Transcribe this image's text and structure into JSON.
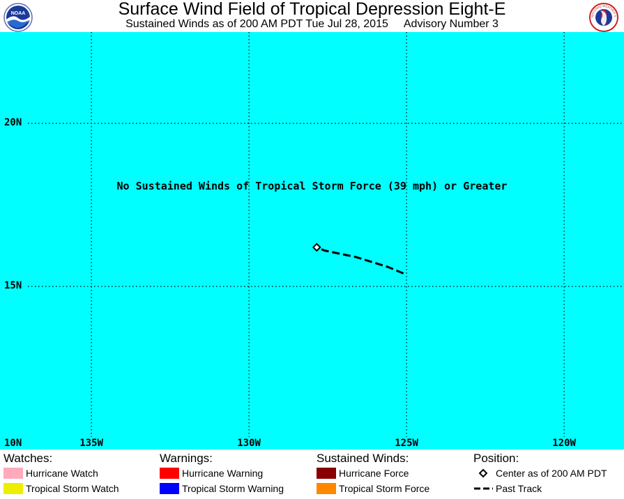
{
  "header": {
    "title": "Surface Wind Field of Tropical Depression Eight-E",
    "subtitle_time": "Sustained Winds as of 200 AM PDT Tue Jul 28, 2015",
    "subtitle_advisory": "Advisory Number 3",
    "left_logo_text": "NOAA",
    "right_logo_text": "NATIONAL WEATHER SERVICE"
  },
  "map": {
    "ocean_color": "#00ffff",
    "lat_range": [
      10,
      22.8
    ],
    "lon_range": [
      -137.9,
      -118.1
    ],
    "lat_labels": [
      {
        "lat": 20,
        "text": "20N"
      },
      {
        "lat": 15,
        "text": "15N"
      },
      {
        "lat": 10,
        "text": "10N"
      }
    ],
    "lon_labels": [
      {
        "lon": -135,
        "text": "135W"
      },
      {
        "lon": -130,
        "text": "130W"
      },
      {
        "lon": -125,
        "text": "125W"
      },
      {
        "lon": -120,
        "text": "120W"
      }
    ],
    "no_winds_message": "No Sustained Winds of Tropical Storm Force (39 mph) or Greater",
    "center": {
      "lat": 16.2,
      "lon": -127.85
    },
    "past_track": [
      {
        "lat": 15.4,
        "lon": -125.1
      },
      {
        "lat": 15.6,
        "lon": -125.6
      },
      {
        "lat": 15.75,
        "lon": -126.1
      },
      {
        "lat": 15.9,
        "lon": -126.6
      },
      {
        "lat": 16.0,
        "lon": -127.1
      },
      {
        "lat": 16.1,
        "lon": -127.6
      },
      {
        "lat": 16.2,
        "lon": -127.85
      }
    ]
  },
  "legend": {
    "watches": {
      "heading": "Watches:",
      "items": [
        {
          "label": "Hurricane Watch",
          "color": "#ffaabb"
        },
        {
          "label": "Tropical Storm Watch",
          "color": "#eeee00"
        }
      ]
    },
    "warnings": {
      "heading": "Warnings:",
      "items": [
        {
          "label": "Hurricane Warning",
          "color": "#ff0000"
        },
        {
          "label": "Tropical Storm Warning",
          "color": "#0000ff"
        }
      ]
    },
    "sustained_winds": {
      "heading": "Sustained Winds:",
      "items": [
        {
          "label": "Hurricane Force",
          "color": "#880000"
        },
        {
          "label": "Tropical Storm Force",
          "color": "#ff8800"
        }
      ]
    },
    "position": {
      "heading": "Position:",
      "items": [
        {
          "label": "Center as of 200 AM PDT",
          "icon": "diamond-icon"
        },
        {
          "label": "Past Track",
          "icon": "dashed-line-icon"
        }
      ]
    }
  }
}
